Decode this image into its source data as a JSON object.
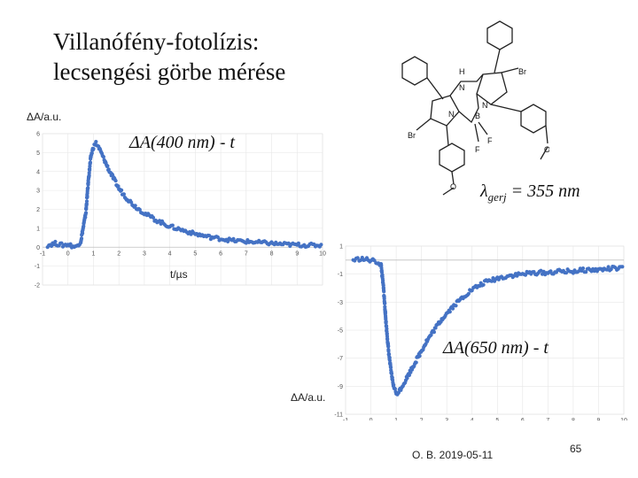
{
  "title": {
    "line1": "Villanófény-fotolízis:",
    "line2": "lecsengési görbe mérése"
  },
  "excitation": {
    "symbol": "λ",
    "sub": "gerj",
    "value": " = 355 nm"
  },
  "footer": {
    "author_date": "O. B. 2019-05-11",
    "page": "65"
  },
  "molecule": {
    "labels": [
      "H",
      "N",
      "N",
      "B",
      "N",
      "F",
      "F",
      "Br",
      "Br",
      "O",
      "O"
    ]
  },
  "chart_data": [
    {
      "type": "scatter",
      "title": "ΔA(400 nm) - t",
      "ylabel": "ΔA/a.u.",
      "xlabel": "t/µs",
      "xlim": [
        -1,
        10
      ],
      "ylim": [
        -2,
        6
      ],
      "x_ticks": [
        "-1",
        "0",
        "1",
        "2",
        "3",
        "4",
        "5",
        "6",
        "7",
        "8",
        "9",
        "10"
      ],
      "y_ticks": [
        "6",
        "5",
        "4",
        "3",
        "2",
        "1",
        "0",
        "-1",
        "-2"
      ],
      "color": "#4472c4",
      "points": [
        [
          -0.8,
          0.1
        ],
        [
          -0.5,
          0.2
        ],
        [
          -0.2,
          0.1
        ],
        [
          0.0,
          0.15
        ],
        [
          0.3,
          0.0
        ],
        [
          0.5,
          0.3
        ],
        [
          0.7,
          1.8
        ],
        [
          0.8,
          3.5
        ],
        [
          0.9,
          4.8
        ],
        [
          1.0,
          5.3
        ],
        [
          1.1,
          5.5
        ],
        [
          1.2,
          5.3
        ],
        [
          1.4,
          4.7
        ],
        [
          1.6,
          4.1
        ],
        [
          1.8,
          3.6
        ],
        [
          2.0,
          3.1
        ],
        [
          2.3,
          2.6
        ],
        [
          2.6,
          2.2
        ],
        [
          3.0,
          1.8
        ],
        [
          3.5,
          1.4
        ],
        [
          4.0,
          1.1
        ],
        [
          4.5,
          0.9
        ],
        [
          5.0,
          0.7
        ],
        [
          5.5,
          0.55
        ],
        [
          6.0,
          0.45
        ],
        [
          6.5,
          0.35
        ],
        [
          7.0,
          0.3
        ],
        [
          7.5,
          0.25
        ],
        [
          8.0,
          0.2
        ],
        [
          8.5,
          0.15
        ],
        [
          9.0,
          0.12
        ],
        [
          9.5,
          0.1
        ],
        [
          10.0,
          0.1
        ]
      ]
    },
    {
      "type": "scatter",
      "title": "ΔA(650 nm) - t",
      "ylabel": "ΔA/a.u.",
      "xlabel": "",
      "xlim": [
        -1,
        10
      ],
      "ylim": [
        -11,
        1
      ],
      "x_ticks": [
        "-1",
        "0",
        "1",
        "2",
        "3",
        "4",
        "5",
        "6",
        "7",
        "8",
        "9",
        "10"
      ],
      "y_ticks": [
        "1",
        "-1",
        "-3",
        "-5",
        "-7",
        "-9",
        "-11"
      ],
      "color": "#4472c4",
      "points": [
        [
          -0.7,
          0.0
        ],
        [
          -0.4,
          0.1
        ],
        [
          -0.1,
          0.0
        ],
        [
          0.2,
          -0.1
        ],
        [
          0.4,
          -0.3
        ],
        [
          0.5,
          -2.0
        ],
        [
          0.6,
          -4.5
        ],
        [
          0.7,
          -6.5
        ],
        [
          0.8,
          -8.0
        ],
        [
          0.9,
          -9.0
        ],
        [
          1.0,
          -9.5
        ],
        [
          1.1,
          -9.4
        ],
        [
          1.3,
          -8.8
        ],
        [
          1.6,
          -7.8
        ],
        [
          1.9,
          -6.8
        ],
        [
          2.2,
          -5.8
        ],
        [
          2.5,
          -5.0
        ],
        [
          2.8,
          -4.2
        ],
        [
          3.2,
          -3.4
        ],
        [
          3.6,
          -2.7
        ],
        [
          4.0,
          -2.1
        ],
        [
          4.5,
          -1.6
        ],
        [
          5.0,
          -1.3
        ],
        [
          5.5,
          -1.1
        ],
        [
          6.0,
          -1.0
        ],
        [
          6.5,
          -0.9
        ],
        [
          7.0,
          -0.9
        ],
        [
          7.5,
          -0.8
        ],
        [
          8.0,
          -0.8
        ],
        [
          8.5,
          -0.7
        ],
        [
          9.0,
          -0.7
        ],
        [
          9.5,
          -0.6
        ],
        [
          10.0,
          -0.6
        ]
      ]
    }
  ]
}
